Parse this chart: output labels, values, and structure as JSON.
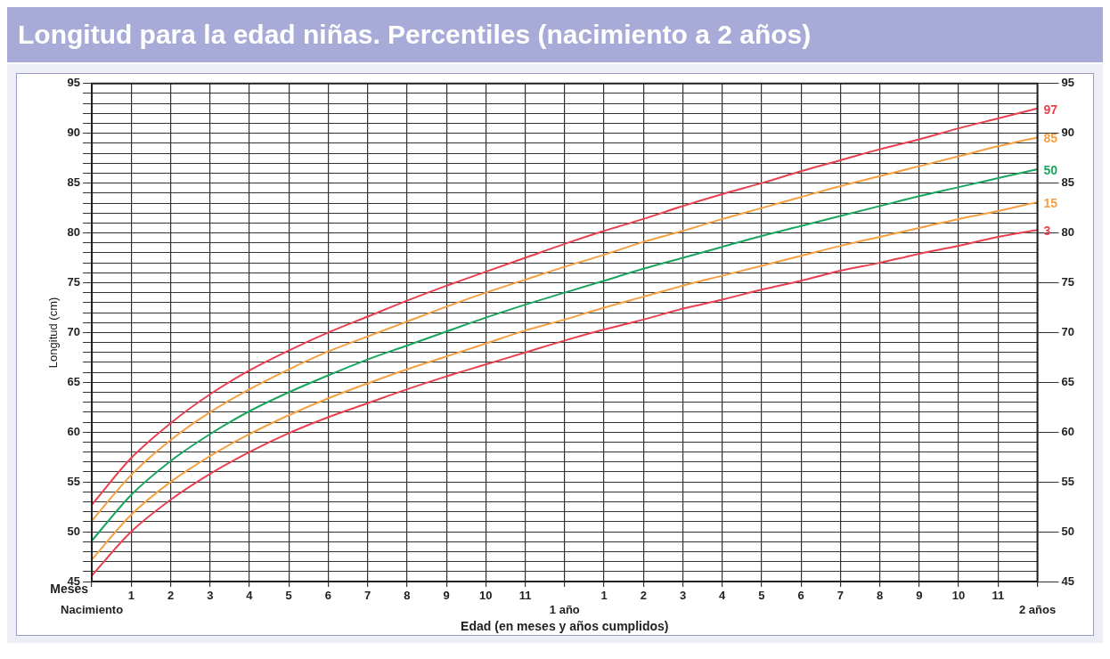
{
  "chart_data": {
    "type": "line",
    "title": "Longitud para la edad niñas. Percentiles (nacimiento a 2 años)",
    "xlabel": "Edad (en meses y años cumplidos)",
    "ylabel": "Longitud (cm)",
    "annotations": [
      "Meses"
    ],
    "categories": [
      "Nacimiento",
      "1",
      "2",
      "3",
      "4",
      "5",
      "6",
      "7",
      "8",
      "9",
      "10",
      "11",
      "1 año",
      "1",
      "2",
      "3",
      "4",
      "5",
      "6",
      "7",
      "8",
      "9",
      "10",
      "11",
      "2 años"
    ],
    "series": [
      {
        "name": "97",
        "color": "#e8414f",
        "values": [
          52.7,
          57.4,
          60.9,
          63.8,
          66.2,
          68.2,
          70.0,
          71.6,
          73.2,
          74.7,
          76.1,
          77.5,
          78.9,
          80.2,
          81.4,
          82.7,
          83.9,
          85.0,
          86.2,
          87.3,
          88.4,
          89.4,
          90.5,
          91.5,
          92.5
        ]
      },
      {
        "name": "85",
        "color": "#f5a042",
        "values": [
          51.1,
          55.7,
          59.2,
          62.0,
          64.3,
          66.3,
          68.1,
          69.6,
          71.1,
          72.6,
          74.0,
          75.3,
          76.6,
          77.8,
          79.1,
          80.2,
          81.4,
          82.5,
          83.6,
          84.7,
          85.7,
          86.7,
          87.7,
          88.7,
          89.6
        ]
      },
      {
        "name": "50",
        "color": "#1aa560",
        "values": [
          49.1,
          53.7,
          57.1,
          59.8,
          62.1,
          64.0,
          65.7,
          67.3,
          68.7,
          70.1,
          71.5,
          72.8,
          74.0,
          75.2,
          76.4,
          77.5,
          78.6,
          79.7,
          80.7,
          81.7,
          82.7,
          83.7,
          84.6,
          85.5,
          86.4
        ]
      },
      {
        "name": "15",
        "color": "#f5a042",
        "values": [
          47.2,
          51.7,
          55.0,
          57.6,
          59.8,
          61.7,
          63.4,
          64.9,
          66.3,
          67.6,
          68.9,
          70.2,
          71.3,
          72.5,
          73.6,
          74.7,
          75.7,
          76.7,
          77.7,
          78.7,
          79.6,
          80.5,
          81.4,
          82.2,
          83.1
        ]
      },
      {
        "name": "3",
        "color": "#e8414f",
        "values": [
          45.6,
          50.0,
          53.2,
          55.8,
          58.0,
          59.9,
          61.5,
          62.9,
          64.3,
          65.6,
          66.8,
          68.0,
          69.2,
          70.3,
          71.3,
          72.4,
          73.3,
          74.3,
          75.2,
          76.2,
          77.0,
          77.9,
          78.7,
          79.6,
          80.3
        ]
      }
    ],
    "ylim": [
      45,
      95
    ],
    "yticks": [
      45,
      {
        "value": 46,
        "label": null
      },
      {
        "value": 47,
        "label": null
      },
      {
        "value": 48,
        "label": null
      },
      {
        "value": 49,
        "label": null
      },
      50,
      {
        "value": 51,
        "label": null
      },
      {
        "value": 52,
        "label": null
      },
      {
        "value": 53,
        "label": null
      },
      {
        "value": 54,
        "label": null
      },
      55,
      {
        "value": 56,
        "label": null
      },
      {
        "value": 57,
        "label": null
      },
      {
        "value": 58,
        "label": null
      },
      {
        "value": 59,
        "label": null
      },
      60,
      {
        "value": 61,
        "label": null
      },
      {
        "value": 62,
        "label": null
      },
      {
        "value": 63,
        "label": null
      },
      {
        "value": 64,
        "label": null
      },
      65,
      {
        "value": 66,
        "label": null
      },
      {
        "value": 67,
        "label": null
      },
      {
        "value": 68,
        "label": null
      },
      {
        "value": 69,
        "label": null
      },
      70,
      {
        "value": 71,
        "label": null
      },
      {
        "value": 72,
        "label": null
      },
      {
        "value": 73,
        "label": null
      },
      {
        "value": 74,
        "label": null
      },
      75,
      {
        "value": 76,
        "label": null
      },
      {
        "value": 77,
        "label": null
      },
      {
        "value": 78,
        "label": null
      },
      {
        "value": 79,
        "label": null
      },
      80,
      {
        "value": 81,
        "label": null
      },
      {
        "value": 82,
        "label": null
      },
      {
        "value": 83,
        "label": null
      },
      {
        "value": 84,
        "label": null
      },
      85,
      {
        "value": 86,
        "label": null
      },
      {
        "value": 87,
        "label": null
      },
      {
        "value": 88,
        "label": null
      },
      {
        "value": 89,
        "label": null
      },
      90,
      {
        "value": 91,
        "label": null
      },
      {
        "value": 92,
        "label": null
      },
      {
        "value": 93,
        "label": null
      },
      {
        "value": 94,
        "label": null
      },
      95
    ],
    "y2lim": [
      45,
      95
    ],
    "y2ticks": [
      45,
      50,
      55,
      60,
      65,
      70,
      75,
      80,
      85,
      90,
      95
    ],
    "grid": true,
    "legend": false,
    "marker": "none",
    "line_style": "solid"
  }
}
